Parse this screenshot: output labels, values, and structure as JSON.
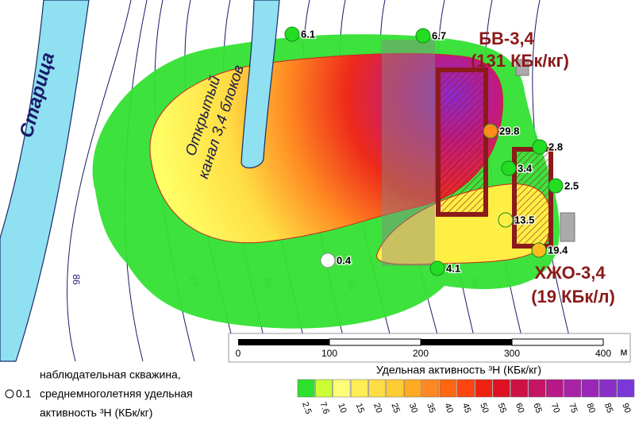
{
  "map": {
    "river_label": "Старица",
    "channel_label": [
      "Открытый",
      "канал 3,4 блоков"
    ],
    "wells": [
      {
        "value": 6.1,
        "color": "#22dd22"
      },
      {
        "value": 6.7,
        "color": "#22dd22"
      },
      {
        "value": 29.8,
        "color": "#ff8c1a"
      },
      {
        "value": 2.8,
        "color": "#22dd22"
      },
      {
        "value": 3.4,
        "color": "#22dd22"
      },
      {
        "value": 2.5,
        "color": "#22dd22"
      },
      {
        "value": 13.5,
        "color": "#ffee44"
      },
      {
        "value": 19.4,
        "color": "#ffbb22"
      },
      {
        "value": 0.4,
        "color": "#ffffff"
      },
      {
        "value": 4.1,
        "color": "#22dd22"
      }
    ],
    "facilities": [
      {
        "name": "БВ-3,4",
        "activity": "(131 КБк/кг)"
      },
      {
        "name": "ХЖО-3,4",
        "activity": "(19 КБк/л)"
      }
    ],
    "contours": [
      "86",
      "87",
      "88",
      "89",
      "90"
    ],
    "scale_bar": {
      "ticks": [
        "0",
        "100",
        "200",
        "300",
        "400"
      ],
      "unit": "м"
    }
  },
  "legend": {
    "well": {
      "symbol_value": "0.1",
      "lines": [
        "наблюдательная скважина,",
        "среднемноголетняя удельная",
        "активность ³H (КБк/кг)"
      ]
    },
    "colorscale": {
      "title": "Удельная активность ³H (КБк/кг)",
      "ticks": [
        2.5,
        7.6,
        10,
        15,
        20,
        25,
        30,
        35,
        40,
        45,
        50,
        55,
        60,
        65,
        70,
        75,
        80,
        85,
        90
      ],
      "colors": [
        "#2ee02e",
        "#ccff33",
        "#ffff77",
        "#ffee55",
        "#ffdd44",
        "#ffcc33",
        "#ffaa22",
        "#ff8822",
        "#ff6611",
        "#ff4411",
        "#ee2211",
        "#dd1122",
        "#cc1144",
        "#c41466",
        "#b81888",
        "#a822a4",
        "#9a26b8",
        "#8a30c8",
        "#7a38d8"
      ]
    }
  }
}
